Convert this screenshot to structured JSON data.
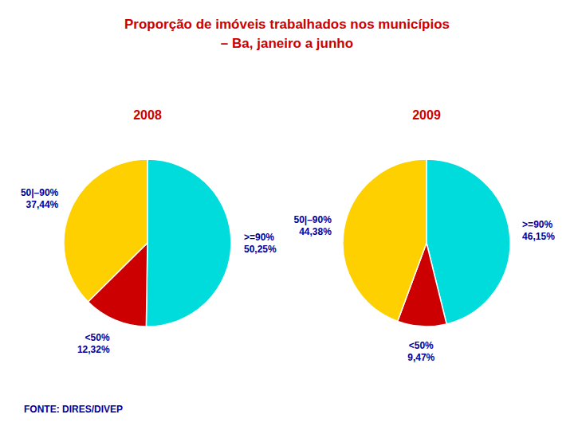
{
  "title": "Proporção de imóveis trabalhados nos municípios",
  "subtitle": "– Ba, janeiro a junho",
  "annotations": [
    "FONTE: DIRES/DIVEP"
  ],
  "chart_data": [
    {
      "type": "pie",
      "title": "2008",
      "categories": [
        ">=90%",
        "<50%",
        "50|–90%"
      ],
      "values": [
        50.25,
        12.32,
        37.44
      ],
      "value_labels": [
        "50,25%",
        "12,32%",
        "37,44%"
      ],
      "colors": [
        "#00DCDC",
        "#CC0000",
        "#FFD000"
      ],
      "data_labels": true
    },
    {
      "type": "pie",
      "title": "2009",
      "categories": [
        ">=90%",
        "<50%",
        "50|–90%"
      ],
      "values": [
        46.15,
        9.47,
        44.38
      ],
      "value_labels": [
        "46,15%",
        "9,47%",
        "44,38%"
      ],
      "colors": [
        "#00DCDC",
        "#CC0000",
        "#FFD000"
      ],
      "data_labels": true
    }
  ]
}
